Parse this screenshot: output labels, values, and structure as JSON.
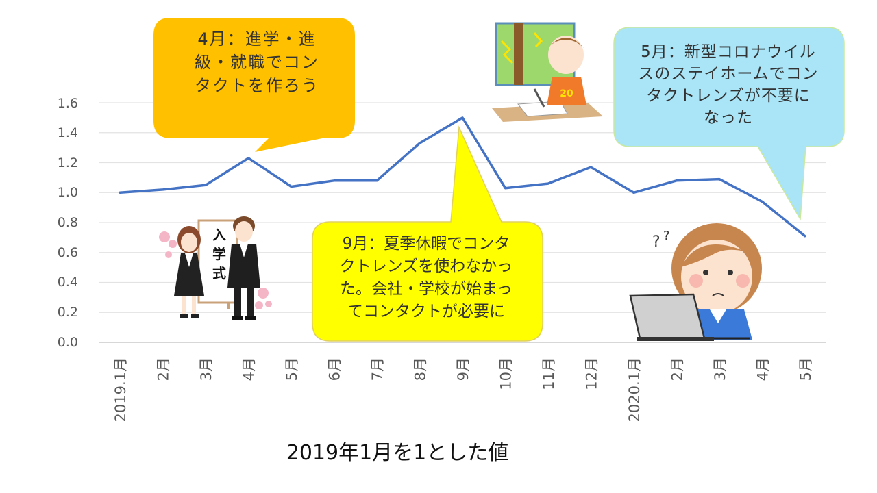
{
  "chart_data": {
    "type": "line",
    "categories": [
      "2019.1月",
      "2月",
      "3月",
      "4月",
      "5月",
      "6月",
      "7月",
      "8月",
      "9月",
      "10月",
      "11月",
      "12月",
      "2020.1月",
      "2月",
      "3月",
      "4月",
      "5月"
    ],
    "series": [
      {
        "values": [
          1.0,
          1.02,
          1.05,
          1.23,
          1.04,
          1.08,
          1.08,
          1.33,
          1.5,
          1.03,
          1.06,
          1.17,
          1.0,
          1.08,
          1.09,
          0.94,
          0.71
        ]
      }
    ],
    "ylim": [
      0,
      1.6
    ],
    "yticks": [
      "1.6",
      "1.4",
      "1.2",
      "1.0",
      "0.8",
      "0.6",
      "0.4",
      "0.2",
      "0.0"
    ],
    "title": "",
    "xlabel": "2019年1月を1とした値",
    "ylabel": "",
    "grid": true,
    "line_color": "#4472C4",
    "annotations": [
      {
        "id": "apr",
        "category": "4月",
        "text": "4月：進学・進\n級・就職でコン\nタクトを作ろう",
        "color": "#FFC000"
      },
      {
        "id": "sep",
        "category": "9月",
        "text": "9月：夏季休暇でコンタ\nクトレンズを使わなかっ\nた。会社・学校が始まっ\nてコンタクトが必要に",
        "color": "#FFFF00"
      },
      {
        "id": "may",
        "category": "2020.5月",
        "text": "5月：新型コロナウイル\nスのステイホームでコン\nタクトレンズが不要に\nなった",
        "color": "#A9E5F7"
      }
    ]
  },
  "illustrations": {
    "ceremony_sign": "入学式",
    "tshirt_number": "20"
  }
}
